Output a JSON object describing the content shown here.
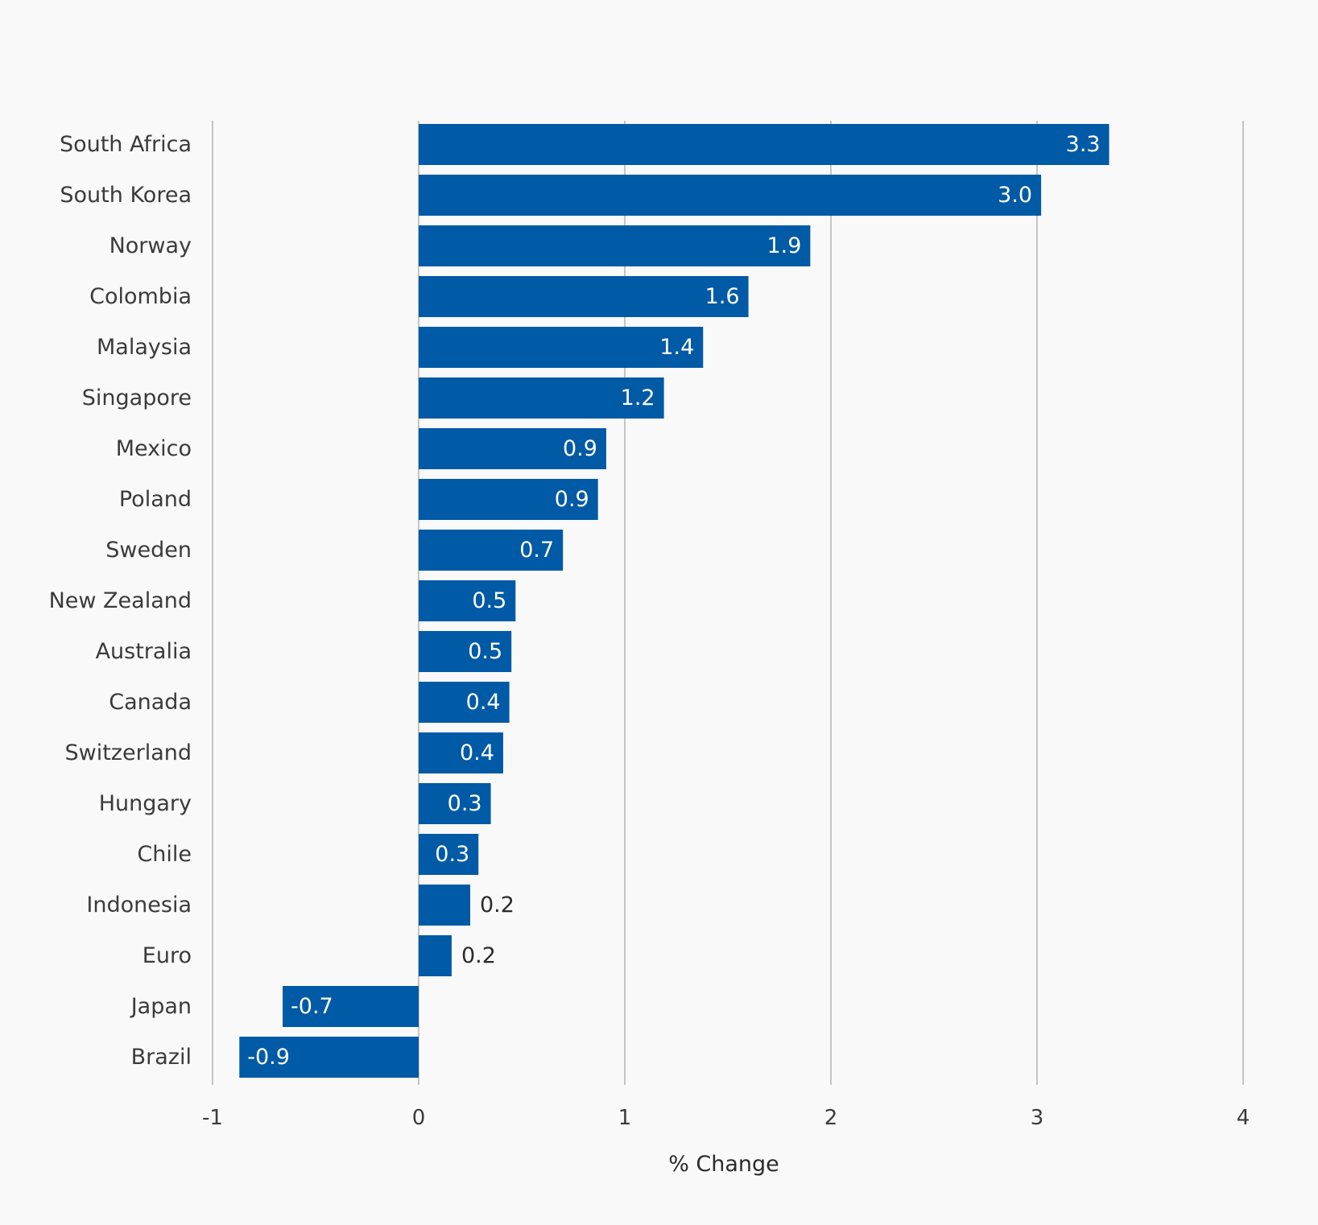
{
  "chart_data": {
    "type": "bar",
    "orientation": "horizontal",
    "categories": [
      "South Africa",
      "South Korea",
      "Norway",
      "Colombia",
      "Malaysia",
      "Singapore",
      "Mexico",
      "Poland",
      "Sweden",
      "New Zealand",
      "Australia",
      "Canada",
      "Switzerland",
      "Hungary",
      "Chile",
      "Indonesia",
      "Euro",
      "Japan",
      "Brazil"
    ],
    "values": [
      3.35,
      3.02,
      1.9,
      1.6,
      1.38,
      1.19,
      0.91,
      0.87,
      0.7,
      0.47,
      0.45,
      0.44,
      0.41,
      0.35,
      0.29,
      0.25,
      0.16,
      -0.66,
      -0.87
    ],
    "value_labels": [
      "3.3",
      "3.0",
      "1.9",
      "1.6",
      "1.4",
      "1.2",
      "0.9",
      "0.9",
      "0.7",
      "0.5",
      "0.5",
      "0.4",
      "0.4",
      "0.3",
      "0.3",
      "0.2",
      "0.2",
      "-0.7",
      "-0.9"
    ],
    "xlabel": "% Change",
    "ylabel": "",
    "title": "",
    "xlim": [
      -1,
      4
    ],
    "xticks": [
      -1,
      0,
      1,
      2,
      3,
      4
    ],
    "tick_labels": [
      "-1",
      "0",
      "1",
      "2",
      "3",
      "4"
    ],
    "grid": "vertical",
    "colors": {
      "bar": "#005aa6",
      "gridline": "#a8a8a8",
      "label_inside": "#ffffff",
      "label_outside": "#2b2b2b"
    }
  }
}
